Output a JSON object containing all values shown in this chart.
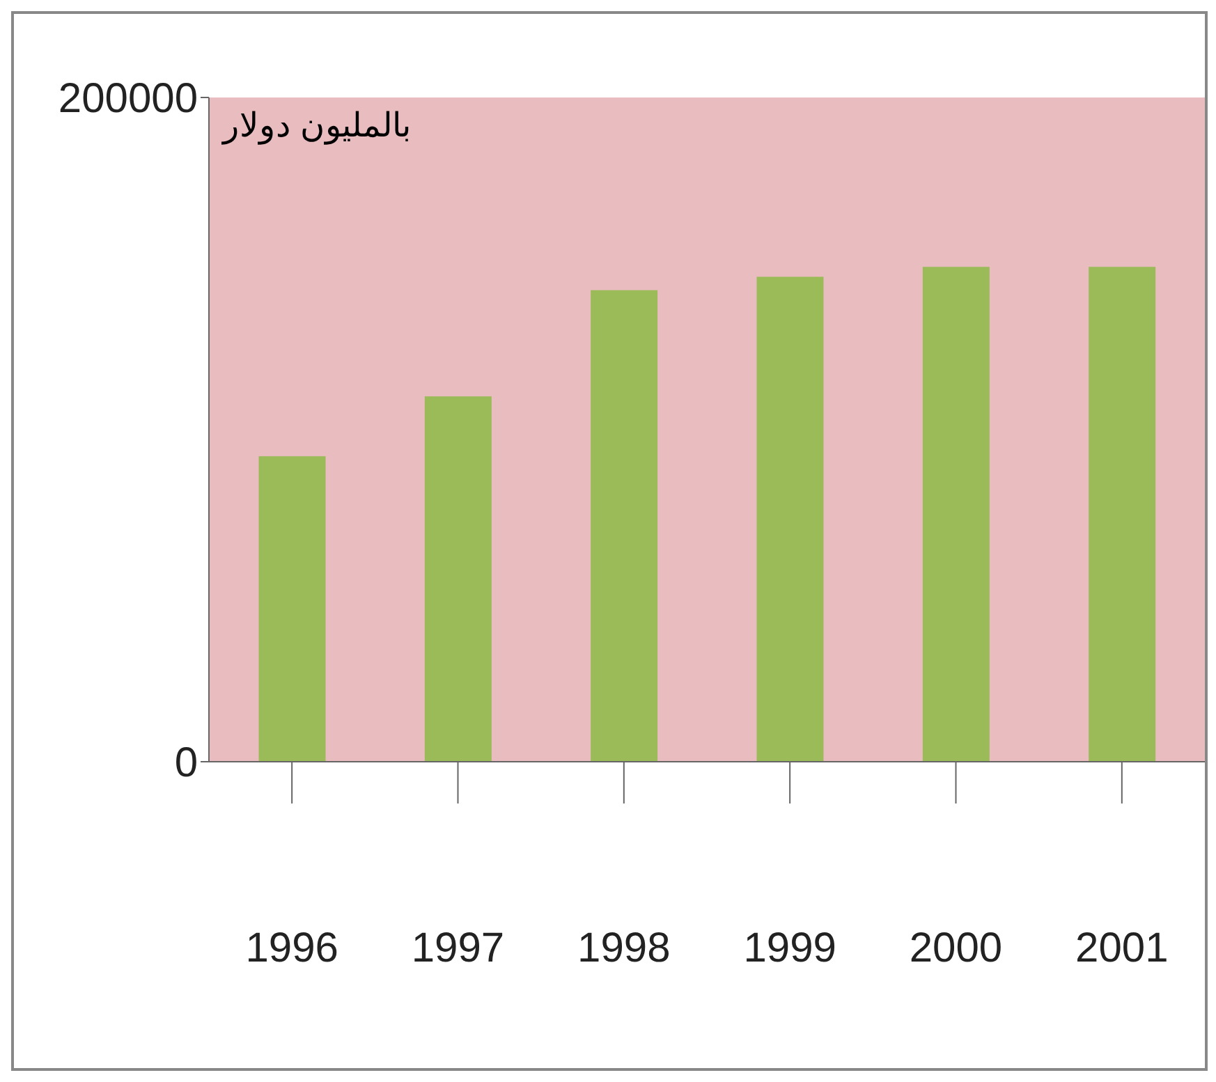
{
  "chart_data": {
    "type": "bar",
    "ylabel": "بالمليون دولار",
    "categories": [
      "1996",
      "1997",
      "1998",
      "1999",
      "2000",
      "2001"
    ],
    "values": [
      92000,
      110000,
      142000,
      146000,
      149000,
      149000
    ],
    "color": "#9bbb59",
    "ylim": [
      0,
      200000
    ],
    "yticks": [
      0,
      200000
    ]
  }
}
